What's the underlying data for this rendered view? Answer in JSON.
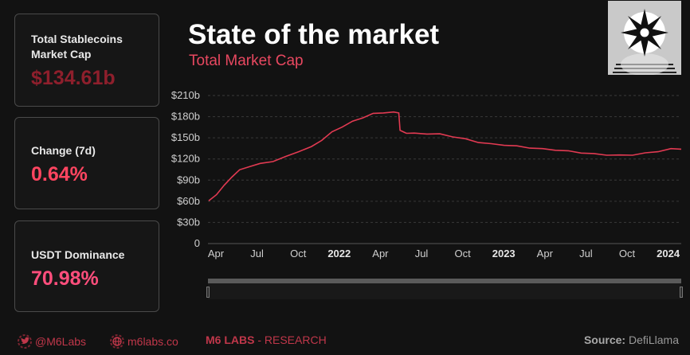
{
  "cards": [
    {
      "label": "Total Stablecoins Market Cap",
      "value": "$134.61b"
    },
    {
      "label": "Change (7d)",
      "value": "0.64%"
    },
    {
      "label": "USDT Dominance",
      "value": "70.98%"
    }
  ],
  "header": {
    "title": "State of the market",
    "subtitle": "Total Market Cap"
  },
  "footer": {
    "twitter": "@M6Labs",
    "website": "m6labs.co",
    "brand": "M6 LABS",
    "brand_suffix": "- RESEARCH",
    "source_label": "Source:",
    "source_value": "DefiLlama"
  },
  "colors": {
    "line": "#e23a52",
    "accent": "#ff4560",
    "grid": "#3a3a3a"
  },
  "icons": {
    "twitter": "twitter-icon",
    "web": "globe-icon",
    "avatar": "avatar-logo-icon"
  },
  "chart_data": {
    "type": "line",
    "title": "Total Market Cap",
    "x_ticks": [
      "Apr",
      "Jul",
      "Oct",
      "2022",
      "Apr",
      "Jul",
      "Oct",
      "2023",
      "Apr",
      "Jul",
      "Oct",
      "2024"
    ],
    "x_ticks_bold": [
      false,
      false,
      false,
      true,
      false,
      false,
      false,
      true,
      false,
      false,
      false,
      true
    ],
    "y_ticks": [
      "0",
      "$30b",
      "$60b",
      "$90b",
      "$120b",
      "$150b",
      "$180b",
      "$210b"
    ],
    "ylim": [
      0,
      210
    ],
    "grid": true,
    "series": [
      {
        "values": [
          [
            0,
            60
          ],
          [
            0.3,
            70
          ],
          [
            0.6,
            82
          ],
          [
            0.9,
            95
          ],
          [
            1.2,
            104
          ],
          [
            1.6,
            110
          ],
          [
            2.0,
            113
          ],
          [
            2.5,
            117
          ],
          [
            3.0,
            123
          ],
          [
            3.5,
            131
          ],
          [
            4.0,
            137
          ],
          [
            4.4,
            147
          ],
          [
            4.8,
            158
          ],
          [
            5.2,
            166
          ],
          [
            5.6,
            173
          ],
          [
            6.0,
            179
          ],
          [
            6.4,
            184
          ],
          [
            6.8,
            186
          ],
          [
            7.2,
            186
          ],
          [
            7.4,
            186
          ],
          [
            7.45,
            160
          ],
          [
            7.7,
            157
          ],
          [
            8.0,
            156
          ],
          [
            8.5,
            156
          ],
          [
            9.0,
            155
          ],
          [
            9.5,
            152
          ],
          [
            10,
            148
          ],
          [
            10.5,
            144
          ],
          [
            11,
            141
          ],
          [
            11.5,
            140
          ],
          [
            12,
            138
          ],
          [
            12.5,
            136
          ],
          [
            13,
            134
          ],
          [
            13.5,
            133
          ],
          [
            14,
            131
          ],
          [
            14.5,
            129
          ],
          [
            15,
            127
          ],
          [
            15.5,
            126
          ],
          [
            16,
            125
          ],
          [
            16.5,
            126
          ],
          [
            17,
            128
          ],
          [
            17.5,
            131
          ],
          [
            18,
            134
          ],
          [
            18.4,
            134.6
          ]
        ]
      }
    ]
  }
}
